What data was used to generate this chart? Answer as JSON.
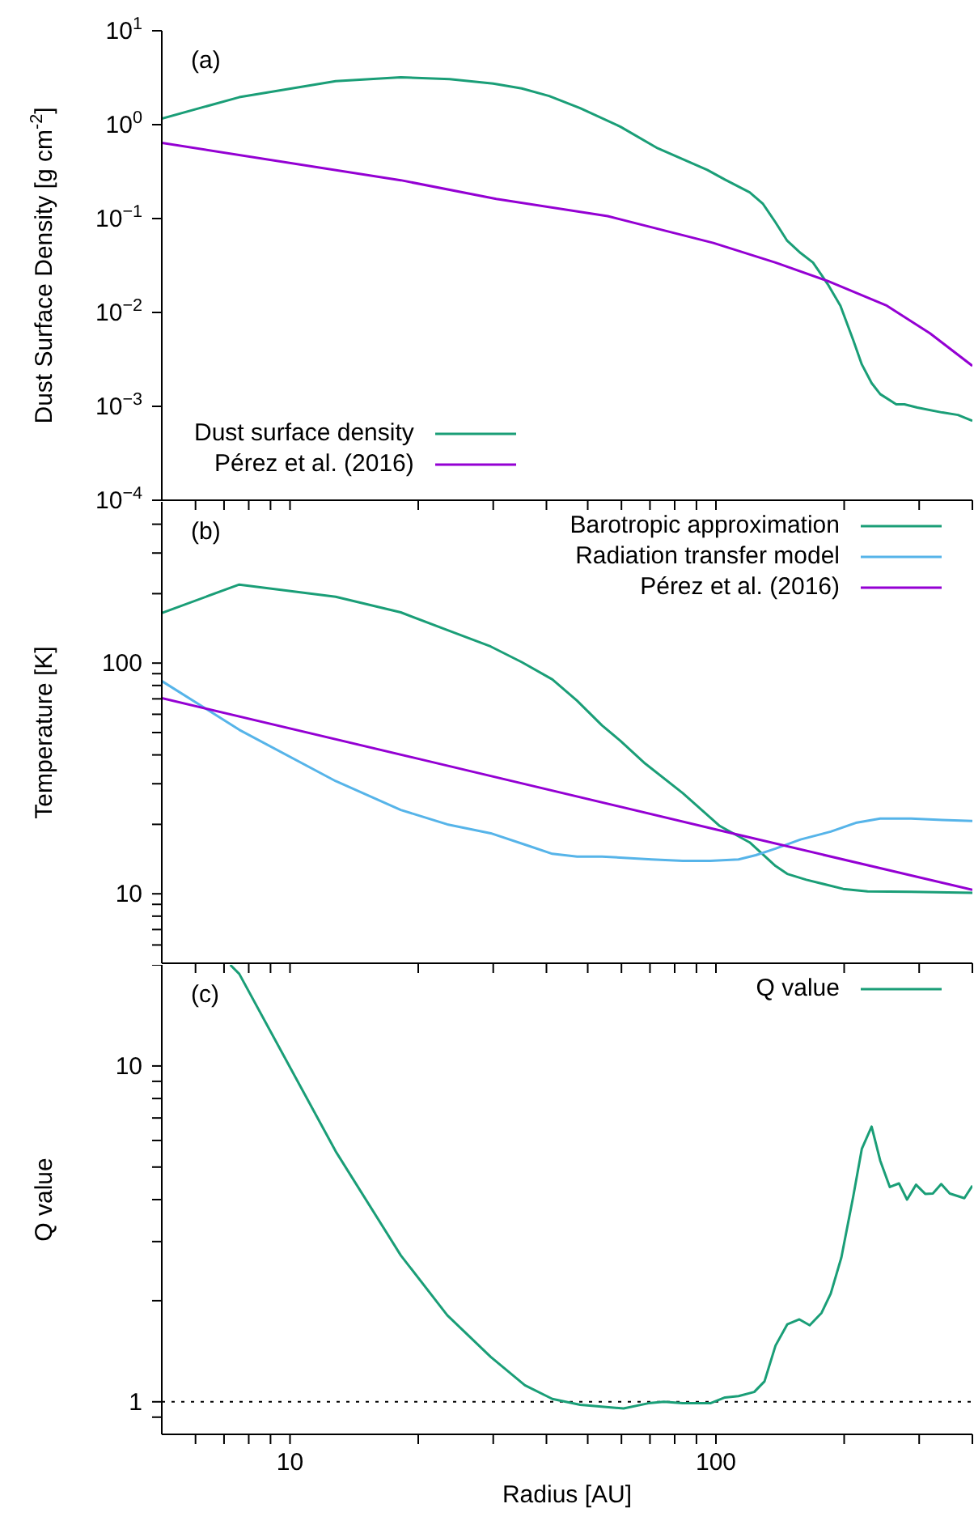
{
  "chart_data": [
    {
      "type": "line",
      "log": "xy",
      "legend": "bottom left",
      "tick_labels": "y",
      "ylabel": "Dust Surface Density [g cm$^{-2}$]",
      "annotations": [
        "(a)"
      ],
      "xlim": [
        5,
        400
      ],
      "xticks": [
        {
          "value": 6,
          "label": null
        },
        {
          "value": 7,
          "label": null
        },
        {
          "value": 8,
          "label": null
        },
        {
          "value": 9,
          "label": null
        },
        {
          "value": 10,
          "label": null
        },
        {
          "value": 20,
          "label": null
        },
        {
          "value": 30,
          "label": null
        },
        {
          "value": 40,
          "label": null
        },
        {
          "value": 50,
          "label": null
        },
        {
          "value": 60,
          "label": null
        },
        {
          "value": 70,
          "label": null
        },
        {
          "value": 80,
          "label": null
        },
        {
          "value": 90,
          "label": null
        },
        {
          "value": 100,
          "label": null
        },
        {
          "value": 200,
          "label": null
        },
        {
          "value": 300,
          "label": null
        },
        {
          "value": 400,
          "label": null
        }
      ],
      "ylim": [
        0.0001,
        10
      ],
      "yticks": [
        {
          "value": 0.0001,
          "label": "10$^{−4}$"
        },
        {
          "value": 0.001,
          "label": "10$^{−3}$"
        },
        {
          "value": 0.01,
          "label": "10$^{−2}$"
        },
        {
          "value": 0.1,
          "label": "10$^{−1}$"
        },
        {
          "value": 1,
          "label": "10$^{0}$"
        },
        {
          "value": 10,
          "label": "10$^{1}$"
        }
      ],
      "series": [
        {
          "name": "Dust surface density",
          "color": "#1a9e77",
          "x": [
            5,
            7.6,
            12.8,
            18.2,
            23.7,
            30,
            35,
            40.6,
            48,
            59.7,
            73,
            95.4,
            105,
            120,
            129,
            138,
            147,
            158,
            169,
            183,
            196,
            210,
            220,
            232,
            243,
            265,
            277,
            297,
            340,
            370,
            400
          ],
          "values": [
            1.16,
            1.96,
            2.91,
            3.19,
            3.06,
            2.74,
            2.43,
            2.02,
            1.5,
            0.95,
            0.56,
            0.33,
            0.26,
            0.19,
            0.143,
            0.091,
            0.058,
            0.043,
            0.034,
            0.02,
            0.0118,
            0.0051,
            0.0028,
            0.00177,
            0.00135,
            0.00105,
            0.00105,
            0.00097,
            0.00086,
            0.00081,
            0.0007
          ]
        },
        {
          "name": "Pérez et al. (2016)",
          "color": "#9400d3",
          "x": [
            5,
            18.2,
            30.5,
            55.7,
            98.6,
            138,
            183,
            252,
            318,
            400
          ],
          "values": [
            0.64,
            0.256,
            0.162,
            0.106,
            0.055,
            0.034,
            0.0216,
            0.0118,
            0.006,
            0.0027
          ]
        }
      ]
    },
    {
      "type": "line",
      "log": "xy",
      "legend": "top right",
      "tick_labels": "y",
      "ylabel": "Temperature [K]",
      "annotations": [
        "(b)"
      ],
      "xlim": [
        5,
        400
      ],
      "xticks": [
        {
          "value": 6,
          "label": null
        },
        {
          "value": 7,
          "label": null
        },
        {
          "value": 8,
          "label": null
        },
        {
          "value": 9,
          "label": null
        },
        {
          "value": 10,
          "label": null
        },
        {
          "value": 20,
          "label": null
        },
        {
          "value": 30,
          "label": null
        },
        {
          "value": 40,
          "label": null
        },
        {
          "value": 50,
          "label": null
        },
        {
          "value": 60,
          "label": null
        },
        {
          "value": 70,
          "label": null
        },
        {
          "value": 80,
          "label": null
        },
        {
          "value": 90,
          "label": null
        },
        {
          "value": 100,
          "label": null
        },
        {
          "value": 200,
          "label": null
        },
        {
          "value": 300,
          "label": null
        },
        {
          "value": 400,
          "label": null
        }
      ],
      "ylim": [
        5,
        500
      ],
      "yticks": [
        {
          "value": 6,
          "label": null
        },
        {
          "value": 7,
          "label": null
        },
        {
          "value": 8,
          "label": null
        },
        {
          "value": 9,
          "label": null
        },
        10,
        {
          "value": 20,
          "label": null
        },
        {
          "value": 30,
          "label": null
        },
        {
          "value": 40,
          "label": null
        },
        {
          "value": 50,
          "label": null
        },
        {
          "value": 60,
          "label": null
        },
        {
          "value": 70,
          "label": null
        },
        {
          "value": 80,
          "label": null
        },
        {
          "value": 90,
          "label": null
        },
        100,
        {
          "value": 200,
          "label": null
        },
        {
          "value": 300,
          "label": null
        },
        {
          "value": 400,
          "label": null
        }
      ],
      "series": [
        {
          "name": "Barotropic approximation",
          "color": "#1a9e77",
          "x": [
            5,
            7.6,
            12.8,
            18.2,
            23.4,
            29.6,
            35,
            41.3,
            47.2,
            54,
            59.7,
            68.2,
            83.6,
            102,
            120,
            138,
            147,
            163,
            199,
            227,
            287,
            400
          ],
          "values": [
            165,
            219,
            194,
            166,
            139,
            118,
            101,
            85,
            68.7,
            53.7,
            46,
            36.7,
            27.3,
            19.7,
            16.7,
            13.2,
            12.2,
            11.5,
            10.5,
            10.25,
            10.2,
            10.1
          ]
        },
        {
          "name": "Radiation transfer model",
          "color": "#56b4e9",
          "x": [
            5,
            7.6,
            12.8,
            18.2,
            23.4,
            29.6,
            36.1,
            41.3,
            47.2,
            54,
            70.7,
            83.6,
            97,
            113,
            124,
            138,
            158,
            186,
            213,
            243,
            287,
            340,
            400
          ],
          "values": [
            83.6,
            51.4,
            30.8,
            23.1,
            20,
            18.3,
            16.2,
            14.9,
            14.5,
            14.5,
            14.1,
            13.9,
            13.9,
            14.1,
            14.7,
            15.7,
            17.2,
            18.6,
            20.3,
            21.2,
            21.2,
            20.9,
            20.7
          ]
        },
        {
          "name": "Pérez et al. (2016)",
          "color": "#9400d3",
          "x": [
            5,
            20,
            100,
            400
          ],
          "values": [
            70.5,
            38.5,
            19,
            10.4
          ]
        }
      ]
    },
    {
      "type": "line",
      "log": "xy",
      "legend": "top right",
      "xlabel": "Radius [AU]",
      "ylabel": "Q value",
      "annotations": [
        "(c)"
      ],
      "xlim": [
        5,
        400
      ],
      "xticks": [
        {
          "value": 6,
          "label": null
        },
        {
          "value": 7,
          "label": null
        },
        {
          "value": 8,
          "label": null
        },
        {
          "value": 9,
          "label": null
        },
        10,
        {
          "value": 20,
          "label": null
        },
        {
          "value": 30,
          "label": null
        },
        {
          "value": 40,
          "label": null
        },
        {
          "value": 50,
          "label": null
        },
        {
          "value": 60,
          "label": null
        },
        {
          "value": 70,
          "label": null
        },
        {
          "value": 80,
          "label": null
        },
        {
          "value": 90,
          "label": null
        },
        100,
        {
          "value": 200,
          "label": null
        },
        {
          "value": 300,
          "label": null
        },
        {
          "value": 400,
          "label": null
        }
      ],
      "ylim": [
        0.8,
        20
      ],
      "yticks": [
        {
          "value": 0.9,
          "label": null
        },
        1,
        {
          "value": 2,
          "label": null
        },
        {
          "value": 3,
          "label": null
        },
        {
          "value": 4,
          "label": null
        },
        {
          "value": 5,
          "label": null
        },
        {
          "value": 6,
          "label": null
        },
        {
          "value": 7,
          "label": null
        },
        {
          "value": 8,
          "label": null
        },
        {
          "value": 9,
          "label": null
        },
        10,
        {
          "value": 20,
          "label": null
        }
      ],
      "ref_lines": [
        {
          "axis": "y",
          "value": 1,
          "color": "#000000",
          "line_style": "dotted"
        }
      ],
      "series": [
        {
          "name": "Q value",
          "color": "#1a9e77",
          "x": [
            7.24,
            7.6,
            12.8,
            18.2,
            23.4,
            29.6,
            35.6,
            41.3,
            48,
            60.7,
            69.4,
            75.5,
            83.6,
            97,
            105,
            113,
            123,
            130,
            138,
            147,
            157,
            166,
            177,
            186,
            197,
            210,
            220,
            232,
            243,
            256,
            269,
            281,
            295,
            310,
            323,
            338,
            354,
            383,
            400
          ],
          "values": [
            20,
            18.8,
            5.57,
            2.73,
            1.81,
            1.36,
            1.12,
            1.02,
            0.98,
            0.955,
            0.99,
            1,
            0.99,
            0.99,
            1.03,
            1.04,
            1.07,
            1.15,
            1.47,
            1.7,
            1.76,
            1.69,
            1.84,
            2.1,
            2.69,
            4.08,
            5.66,
            6.6,
            5.23,
            4.36,
            4.47,
            4,
            4.43,
            4.16,
            4.17,
            4.45,
            4.17,
            4.04,
            4.4
          ]
        }
      ]
    }
  ]
}
